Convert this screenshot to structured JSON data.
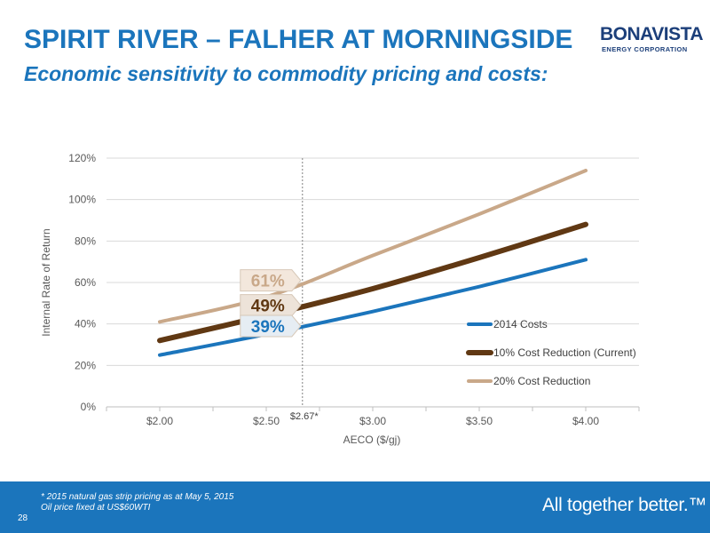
{
  "header": {
    "title": "SPIRIT RIVER – FALHER AT MORNINGSIDE",
    "subtitle": "Economic sensitivity to commodity pricing and costs:"
  },
  "logo": {
    "main": "BONAVISTA",
    "sub": "ENERGY CORPORATION"
  },
  "footer": {
    "footnote_line1": "* 2015 natural gas strip pricing as at May 5, 2015",
    "footnote_line2": "Oil price fixed at US$60WTI",
    "page_number": "28",
    "tagline": "All together better.™",
    "background_color": "#1b75bc"
  },
  "chart_data": {
    "type": "line",
    "title": "",
    "xlabel": "AECO ($/gj)",
    "ylabel": "Internal Rate of Return",
    "x": [
      2.0,
      2.5,
      3.0,
      3.5,
      4.0
    ],
    "x_tick_labels": [
      "$2.00",
      "$2.50",
      "$3.00",
      "$3.50",
      "$4.00"
    ],
    "xlim": [
      1.75,
      4.25
    ],
    "ylim": [
      0,
      120
    ],
    "y_ticks": [
      0,
      20,
      40,
      60,
      80,
      100,
      120
    ],
    "y_tick_labels": [
      "0%",
      "20%",
      "40%",
      "60%",
      "80%",
      "100%",
      "120%"
    ],
    "grid": "horizontal",
    "legend_position": "right",
    "series": [
      {
        "name": "2014 Costs",
        "color": "#1b75bc",
        "values": [
          25,
          35,
          46,
          58,
          71
        ]
      },
      {
        "name": "10% Cost Reduction (Current)",
        "color": "#603813",
        "values": [
          32,
          44,
          57,
          72,
          88
        ]
      },
      {
        "name": "20% Cost Reduction",
        "color": "#c9a889",
        "values": [
          41,
          53,
          73,
          93,
          114
        ]
      }
    ],
    "reference_line": {
      "x": 2.67,
      "label": "$2.67*"
    },
    "annotations": [
      {
        "text": "61%",
        "value": 61,
        "text_color": "#c9a889",
        "fill": "#f3e7dc"
      },
      {
        "text": "49%",
        "value": 49,
        "text_color": "#603813",
        "fill": "#ede3d9"
      },
      {
        "text": "39%",
        "value": 39,
        "text_color": "#1b75bc",
        "fill": "#e6edf3"
      }
    ]
  }
}
